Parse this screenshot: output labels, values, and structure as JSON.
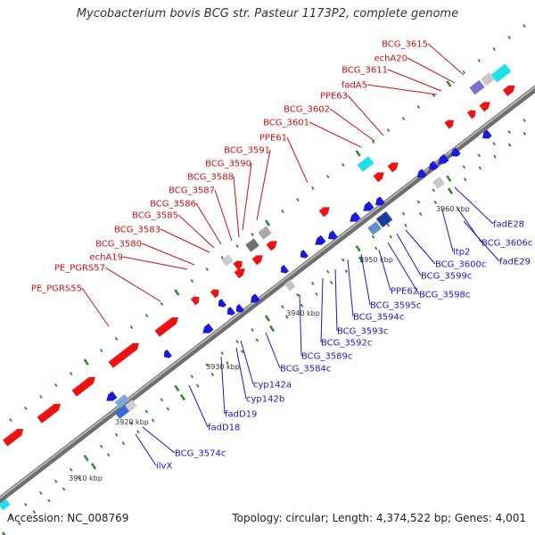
{
  "title": "Mycobacterium bovis BCG str. Pasteur 1173P2, complete genome",
  "accession": "Accession: NC_008769",
  "topology": "Topology: circular; Length: 4,374,522 bp; Genes: 4,001",
  "colors": {
    "forward_gene": "#ee1111",
    "reverse_gene": "#1a1adc",
    "forward_label": "#cc1111",
    "reverse_label": "#1a1acc",
    "backbone": "#909090",
    "tick": "#2a8a2a",
    "cyan_feature": "#22e0e8"
  },
  "scale_labels": [
    "3910 kbp",
    "3920 kbp",
    "3930 kbp",
    "3940 kbp",
    "3950 kbp",
    "3960 kbp"
  ],
  "forward_labels": [
    "BCG_3615",
    "echA20",
    "BCG_3611",
    "fadA5",
    "PPE63",
    "BCG_3602",
    "BCG_3601",
    "PPE61",
    "BCG_3591",
    "BCG_3590",
    "BCG_3588",
    "BCG_3587",
    "BCG_3586",
    "BCG_3585",
    "BCG_3583",
    "BCG_3580",
    "echA19",
    "PE_PGRS57",
    "PE_PGRS55"
  ],
  "reverse_labels": [
    "fadE28",
    "BCG_3606c",
    "fadE29",
    "ltp2",
    "BCG_3600c",
    "BCG_3599c",
    "BCG_3598c",
    "PPE62",
    "BCG_3595c",
    "BCG_3594c",
    "BCG_3593c",
    "BCG_3592c",
    "BCG_3589c",
    "BCG_3584c",
    "cyp142a",
    "cyp142b",
    "fadD19",
    "fadD18",
    "BCG_3574c",
    "ilvX"
  ]
}
